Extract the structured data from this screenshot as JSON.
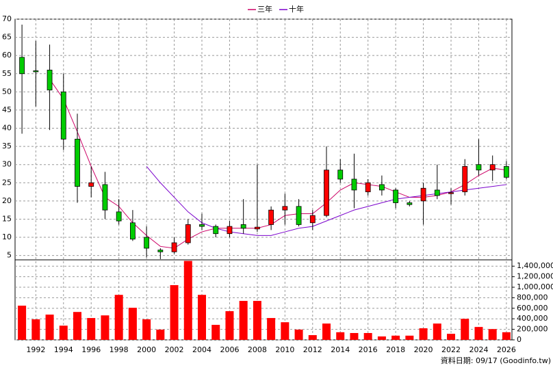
{
  "chart_data": {
    "type": "candlestick",
    "x": [
      1991,
      1992,
      1993,
      1994,
      1995,
      1996,
      1997,
      1998,
      1999,
      2000,
      2001,
      2002,
      2003,
      2004,
      2005,
      2006,
      2007,
      2008,
      2009,
      2010,
      2011,
      2012,
      2013,
      2014,
      2015,
      2016,
      2017,
      2018,
      2019,
      2020,
      2021,
      2022,
      2023,
      2024,
      2025,
      2026
    ],
    "xlim": [
      1990.5,
      2026.4
    ],
    "xticks": [
      1992,
      1994,
      1996,
      1998,
      2000,
      2002,
      2004,
      2006,
      2008,
      2010,
      2012,
      2014,
      2016,
      2018,
      2020,
      2022,
      2024,
      2026
    ],
    "ylim": [
      3.8,
      70
    ],
    "yticks": [
      5,
      10,
      15,
      20,
      25,
      30,
      35,
      40,
      45,
      50,
      55,
      60,
      65,
      70
    ],
    "y2lim": [
      0,
      1520000
    ],
    "y2ticks": [
      0,
      {
        "value": 200000,
        "label": "200,000"
      },
      {
        "value": 400000,
        "label": "400,000"
      },
      {
        "value": 600000,
        "label": "600,000"
      },
      {
        "value": 800000,
        "label": "800,000"
      },
      {
        "value": 1000000,
        "label": "1,000,000"
      },
      {
        "value": 1200000,
        "label": "1,200,000"
      },
      {
        "value": 1400000,
        "label": "1,400,000"
      }
    ],
    "grid": true,
    "up_color": "#ff0000",
    "down_color": "#00cc00",
    "open": [
      59.5,
      55.8,
      56,
      50,
      37,
      24,
      24.5,
      17,
      14,
      10,
      6.5,
      6,
      8.5,
      13.5,
      13,
      11,
      13.5,
      12.3,
      13.5,
      17.5,
      18.5,
      14,
      16,
      28.5,
      26,
      22.5,
      24.5,
      23,
      19.5,
      20,
      23,
      22,
      22.5,
      30,
      28.5,
      29.5
    ],
    "high": [
      68.5,
      64,
      63,
      55,
      44,
      29.5,
      28,
      20.5,
      17.5,
      13,
      7,
      10,
      15,
      16.5,
      13.5,
      14.5,
      20.5,
      30,
      18.5,
      22,
      20.5,
      17.5,
      35,
      31.5,
      33,
      26,
      27,
      23.5,
      20,
      25,
      30,
      23.5,
      31.5,
      37,
      32.5,
      31
    ],
    "low": [
      38.5,
      46,
      39.5,
      34,
      19.5,
      21,
      15,
      13.5,
      9,
      4.5,
      4,
      5.5,
      8,
      12,
      10,
      10,
      11,
      11.5,
      12,
      13.5,
      13,
      12,
      15.5,
      25,
      18,
      21.5,
      21.5,
      18,
      18.5,
      13.5,
      20.5,
      19,
      21.5,
      27,
      25.5,
      26
    ],
    "close": [
      55,
      55.6,
      50.5,
      37,
      24,
      25,
      17.5,
      14.5,
      9.5,
      7,
      6,
      8.5,
      13.5,
      13,
      11,
      13,
      12.5,
      12.8,
      17.5,
      18.5,
      13.5,
      16,
      28.5,
      26,
      23,
      25,
      23,
      19.5,
      19,
      23.5,
      21.5,
      22.3,
      29.5,
      28.5,
      30,
      26.5
    ],
    "series": [
      {
        "name": "三年",
        "color": "#cc0066",
        "values": [
          null,
          null,
          53.5,
          48,
          39,
          29.5,
          21,
          18.5,
          14,
          10.5,
          7.5,
          7,
          9.5,
          11.5,
          12.5,
          12.5,
          12.5,
          12.5,
          13.5,
          16,
          16.5,
          16.5,
          19.5,
          23,
          25,
          24.5,
          24,
          22.5,
          21,
          21,
          21.5,
          22.5,
          24.5,
          27,
          29,
          28.5
        ]
      },
      {
        "name": "十年",
        "color": "#7a00cc",
        "values": [
          null,
          null,
          null,
          null,
          null,
          null,
          null,
          null,
          null,
          29.5,
          25,
          21,
          17,
          14,
          12.5,
          11.5,
          11,
          10.5,
          10.5,
          11.5,
          12.5,
          13,
          14.5,
          16,
          17.5,
          18.5,
          19.5,
          20.5,
          21,
          21.5,
          22,
          22.5,
          23,
          23.5,
          24,
          24.5
        ]
      }
    ],
    "volume": {
      "axis": "y2",
      "color": "#ff0000",
      "values": [
        650000,
        390000,
        480000,
        270000,
        530000,
        415000,
        465000,
        855000,
        610000,
        390000,
        195000,
        1040000,
        1500000,
        855000,
        285000,
        545000,
        740000,
        740000,
        415000,
        335000,
        195000,
        90000,
        310000,
        145000,
        130000,
        130000,
        65000,
        80000,
        80000,
        220000,
        310000,
        115000,
        400000,
        245000,
        205000,
        145000
      ]
    },
    "footer": "資料日期: 09/17 (Goodinfo.tw)"
  }
}
